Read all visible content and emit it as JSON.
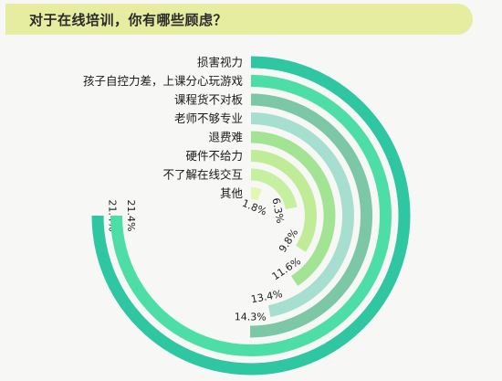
{
  "header": {
    "title": "对于在线培训，你有哪些顾虑？"
  },
  "chart_data": {
    "type": "radial-bar",
    "title": "对于在线培训，你有哪些顾虑？",
    "unit": "%",
    "categories": [
      "损害视力",
      "孩子自控力差，上课分心玩游戏",
      "课程货不对板",
      "老师不够专业",
      "退费难",
      "硬件不给力",
      "不了解在线交互",
      "其他"
    ],
    "values": [
      21.4,
      21.4,
      14.3,
      13.4,
      11.6,
      9.8,
      6.3,
      1.8
    ],
    "value_labels": [
      "21.4%",
      "21.4%",
      "14.3%",
      "13.4%",
      "11.6%",
      "9.8%",
      "6.3%",
      "1.8%"
    ],
    "colors": [
      "#2fc6a2",
      "#4ddea8",
      "#7cc7a6",
      "#a6ded0",
      "#a3e394",
      "#c0ec98",
      "#c4f0a0",
      "#e2f7b0"
    ]
  }
}
